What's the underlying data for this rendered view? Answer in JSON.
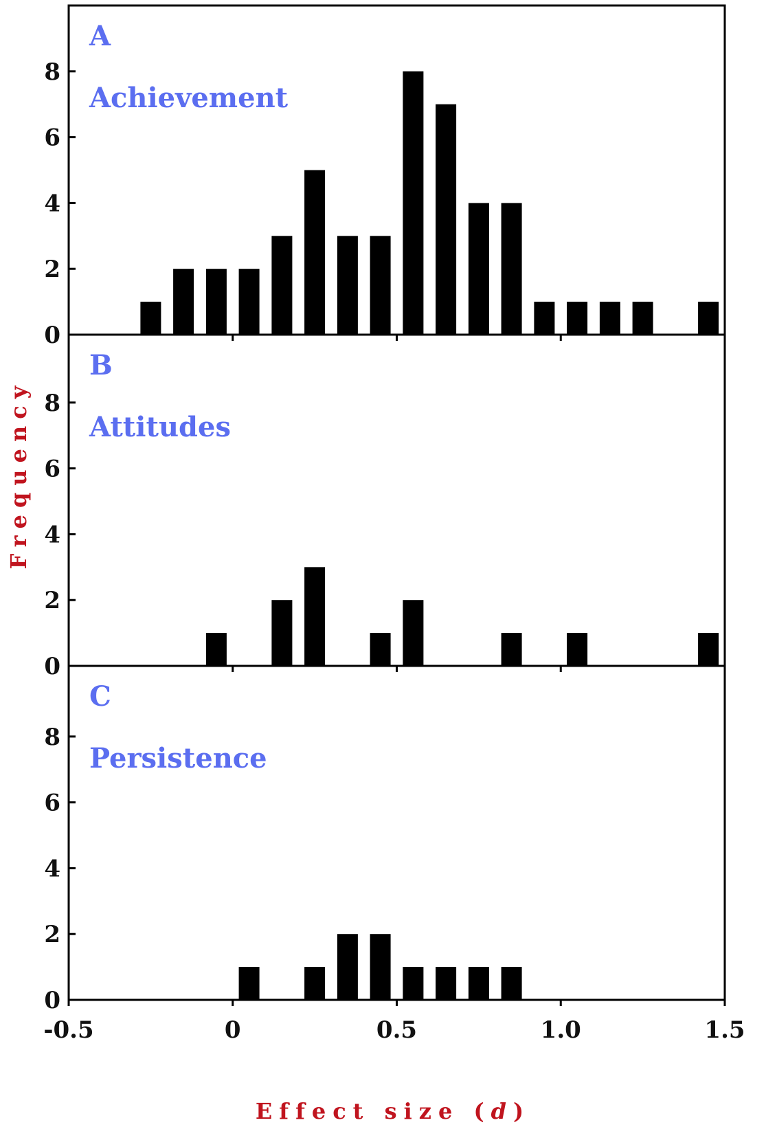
{
  "colors": {
    "bar": "#000000",
    "axis": "#000000",
    "panel_label": "#5b6ef0",
    "axis_title": "#c0141e"
  },
  "chart_data": {
    "type": "bar",
    "layout": "three vertically stacked histogram panels sharing the x axis",
    "xlabel": "Effect size (d)",
    "xlabel_text": "Effect size (",
    "xlabel_italic": "d",
    "xlabel_close": ")",
    "ylabel": "Frequency",
    "xlim": [
      -0.5,
      1.5
    ],
    "ylim": [
      0,
      10
    ],
    "bin_width": 0.1,
    "x_ticks": [
      {
        "value": -0.5,
        "label": "-0.5"
      },
      {
        "value": 0,
        "label": "0"
      },
      {
        "value": 0.5,
        "label": "0.5"
      },
      {
        "value": 1.0,
        "label": "1.0"
      },
      {
        "value": 1.5,
        "label": "1.5"
      }
    ],
    "y_ticks": [
      {
        "value": 0,
        "label": "0"
      },
      {
        "value": 2,
        "label": "2"
      },
      {
        "value": 4,
        "label": "4"
      },
      {
        "value": 6,
        "label": "6"
      },
      {
        "value": 8,
        "label": "8"
      }
    ],
    "grid": false,
    "panels": [
      {
        "letter": "A",
        "name": "Achievement",
        "bins": [
          {
            "x": -0.25,
            "count": 1
          },
          {
            "x": -0.15,
            "count": 2
          },
          {
            "x": -0.05,
            "count": 2
          },
          {
            "x": 0.05,
            "count": 2
          },
          {
            "x": 0.15,
            "count": 3
          },
          {
            "x": 0.25,
            "count": 5
          },
          {
            "x": 0.35,
            "count": 3
          },
          {
            "x": 0.45,
            "count": 3
          },
          {
            "x": 0.55,
            "count": 8
          },
          {
            "x": 0.65,
            "count": 7
          },
          {
            "x": 0.75,
            "count": 4
          },
          {
            "x": 0.85,
            "count": 4
          },
          {
            "x": 0.95,
            "count": 1
          },
          {
            "x": 1.05,
            "count": 1
          },
          {
            "x": 1.15,
            "count": 1
          },
          {
            "x": 1.25,
            "count": 1
          },
          {
            "x": 1.45,
            "count": 1
          }
        ]
      },
      {
        "letter": "B",
        "name": "Attitudes",
        "bins": [
          {
            "x": -0.05,
            "count": 1
          },
          {
            "x": 0.15,
            "count": 2
          },
          {
            "x": 0.25,
            "count": 3
          },
          {
            "x": 0.45,
            "count": 1
          },
          {
            "x": 0.55,
            "count": 2
          },
          {
            "x": 0.85,
            "count": 1
          },
          {
            "x": 1.05,
            "count": 1
          },
          {
            "x": 1.45,
            "count": 1
          }
        ]
      },
      {
        "letter": "C",
        "name": "Persistence",
        "bins": [
          {
            "x": 0.05,
            "count": 1
          },
          {
            "x": 0.25,
            "count": 1
          },
          {
            "x": 0.35,
            "count": 2
          },
          {
            "x": 0.45,
            "count": 2
          },
          {
            "x": 0.55,
            "count": 1
          },
          {
            "x": 0.65,
            "count": 1
          },
          {
            "x": 0.75,
            "count": 1
          },
          {
            "x": 0.85,
            "count": 1
          }
        ]
      }
    ]
  }
}
